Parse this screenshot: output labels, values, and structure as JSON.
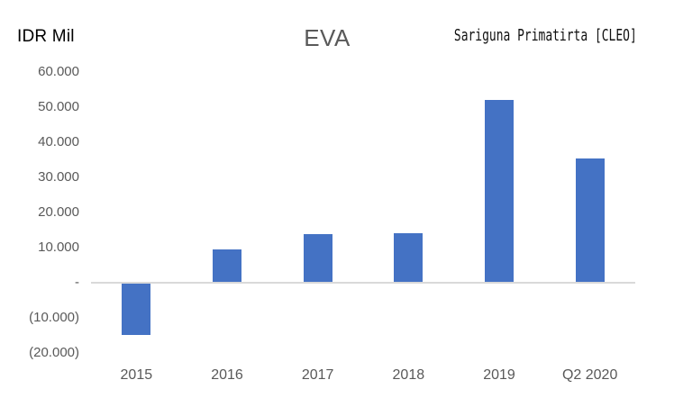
{
  "header": {
    "units_label": "IDR Mil",
    "title": "EVA",
    "company": "Sariguna Primatirta [CLEO]"
  },
  "colors": {
    "bar": "#4472C4",
    "axis_line": "#D9D9D9",
    "axis_text": "#595959",
    "title_text": "#595959",
    "units_text": "#000000",
    "background": "#FFFFFF"
  },
  "chart_data": {
    "type": "bar",
    "title": "EVA",
    "subtitle": "Sariguna Primatirta [CLEO]",
    "units": "IDR Mil",
    "categories": [
      "2015",
      "2016",
      "2017",
      "2018",
      "2019",
      "Q2 2020"
    ],
    "values": [
      -14900,
      9500,
      13700,
      14000,
      52000,
      35200
    ],
    "xlabel": "",
    "ylabel": "IDR Mil",
    "ylim": [
      -20000,
      60000
    ],
    "ytick_step": 10000,
    "ytick_labels": [
      "60.000",
      "50.000",
      "40.000",
      "30.000",
      "20.000",
      "10.000",
      "-",
      "(10.000)",
      "(20.000)"
    ],
    "grid": false,
    "legend": false,
    "bar_color": "#4472C4"
  }
}
